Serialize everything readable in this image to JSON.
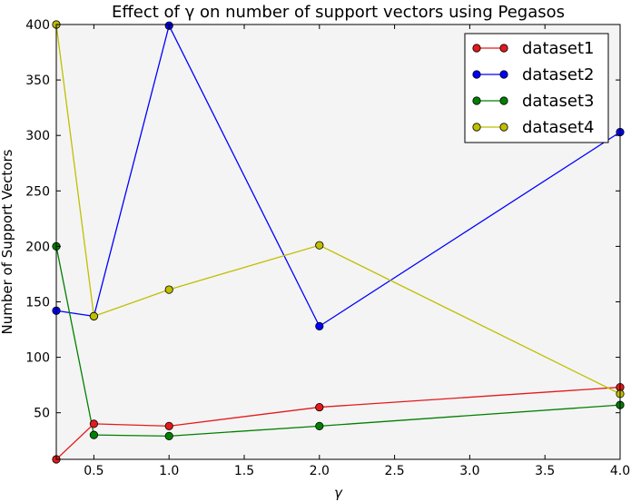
{
  "chart_data": {
    "type": "line",
    "title": "Effect of γ on number of support vectors using Pegasos",
    "xlabel": "γ",
    "ylabel": "Number of Support Vectors",
    "xlim": [
      0.25,
      4.0
    ],
    "ylim": [
      8,
      400
    ],
    "xticks": [
      "0.5",
      "1.0",
      "1.5",
      "2.0",
      "2.5",
      "3.0",
      "3.5",
      "4.0"
    ],
    "yticks": [
      "50",
      "100",
      "150",
      "200",
      "250",
      "300",
      "350",
      "400"
    ],
    "grid": false,
    "legend_position": "top-right",
    "background": "#f4f4f4",
    "x": [
      0.25,
      0.5,
      1.0,
      2.0,
      4.0
    ],
    "series": [
      {
        "name": "dataset1",
        "color": "#e41a1c",
        "values": [
          8,
          40,
          38,
          55,
          73
        ]
      },
      {
        "name": "dataset2",
        "color": "#0000ff",
        "values": [
          142,
          137,
          399,
          128,
          303
        ]
      },
      {
        "name": "dataset3",
        "color": "#008000",
        "values": [
          200,
          30,
          29,
          38,
          57
        ]
      },
      {
        "name": "dataset4",
        "color": "#bfbf00",
        "values": [
          400,
          137,
          161,
          201,
          67
        ]
      }
    ]
  }
}
